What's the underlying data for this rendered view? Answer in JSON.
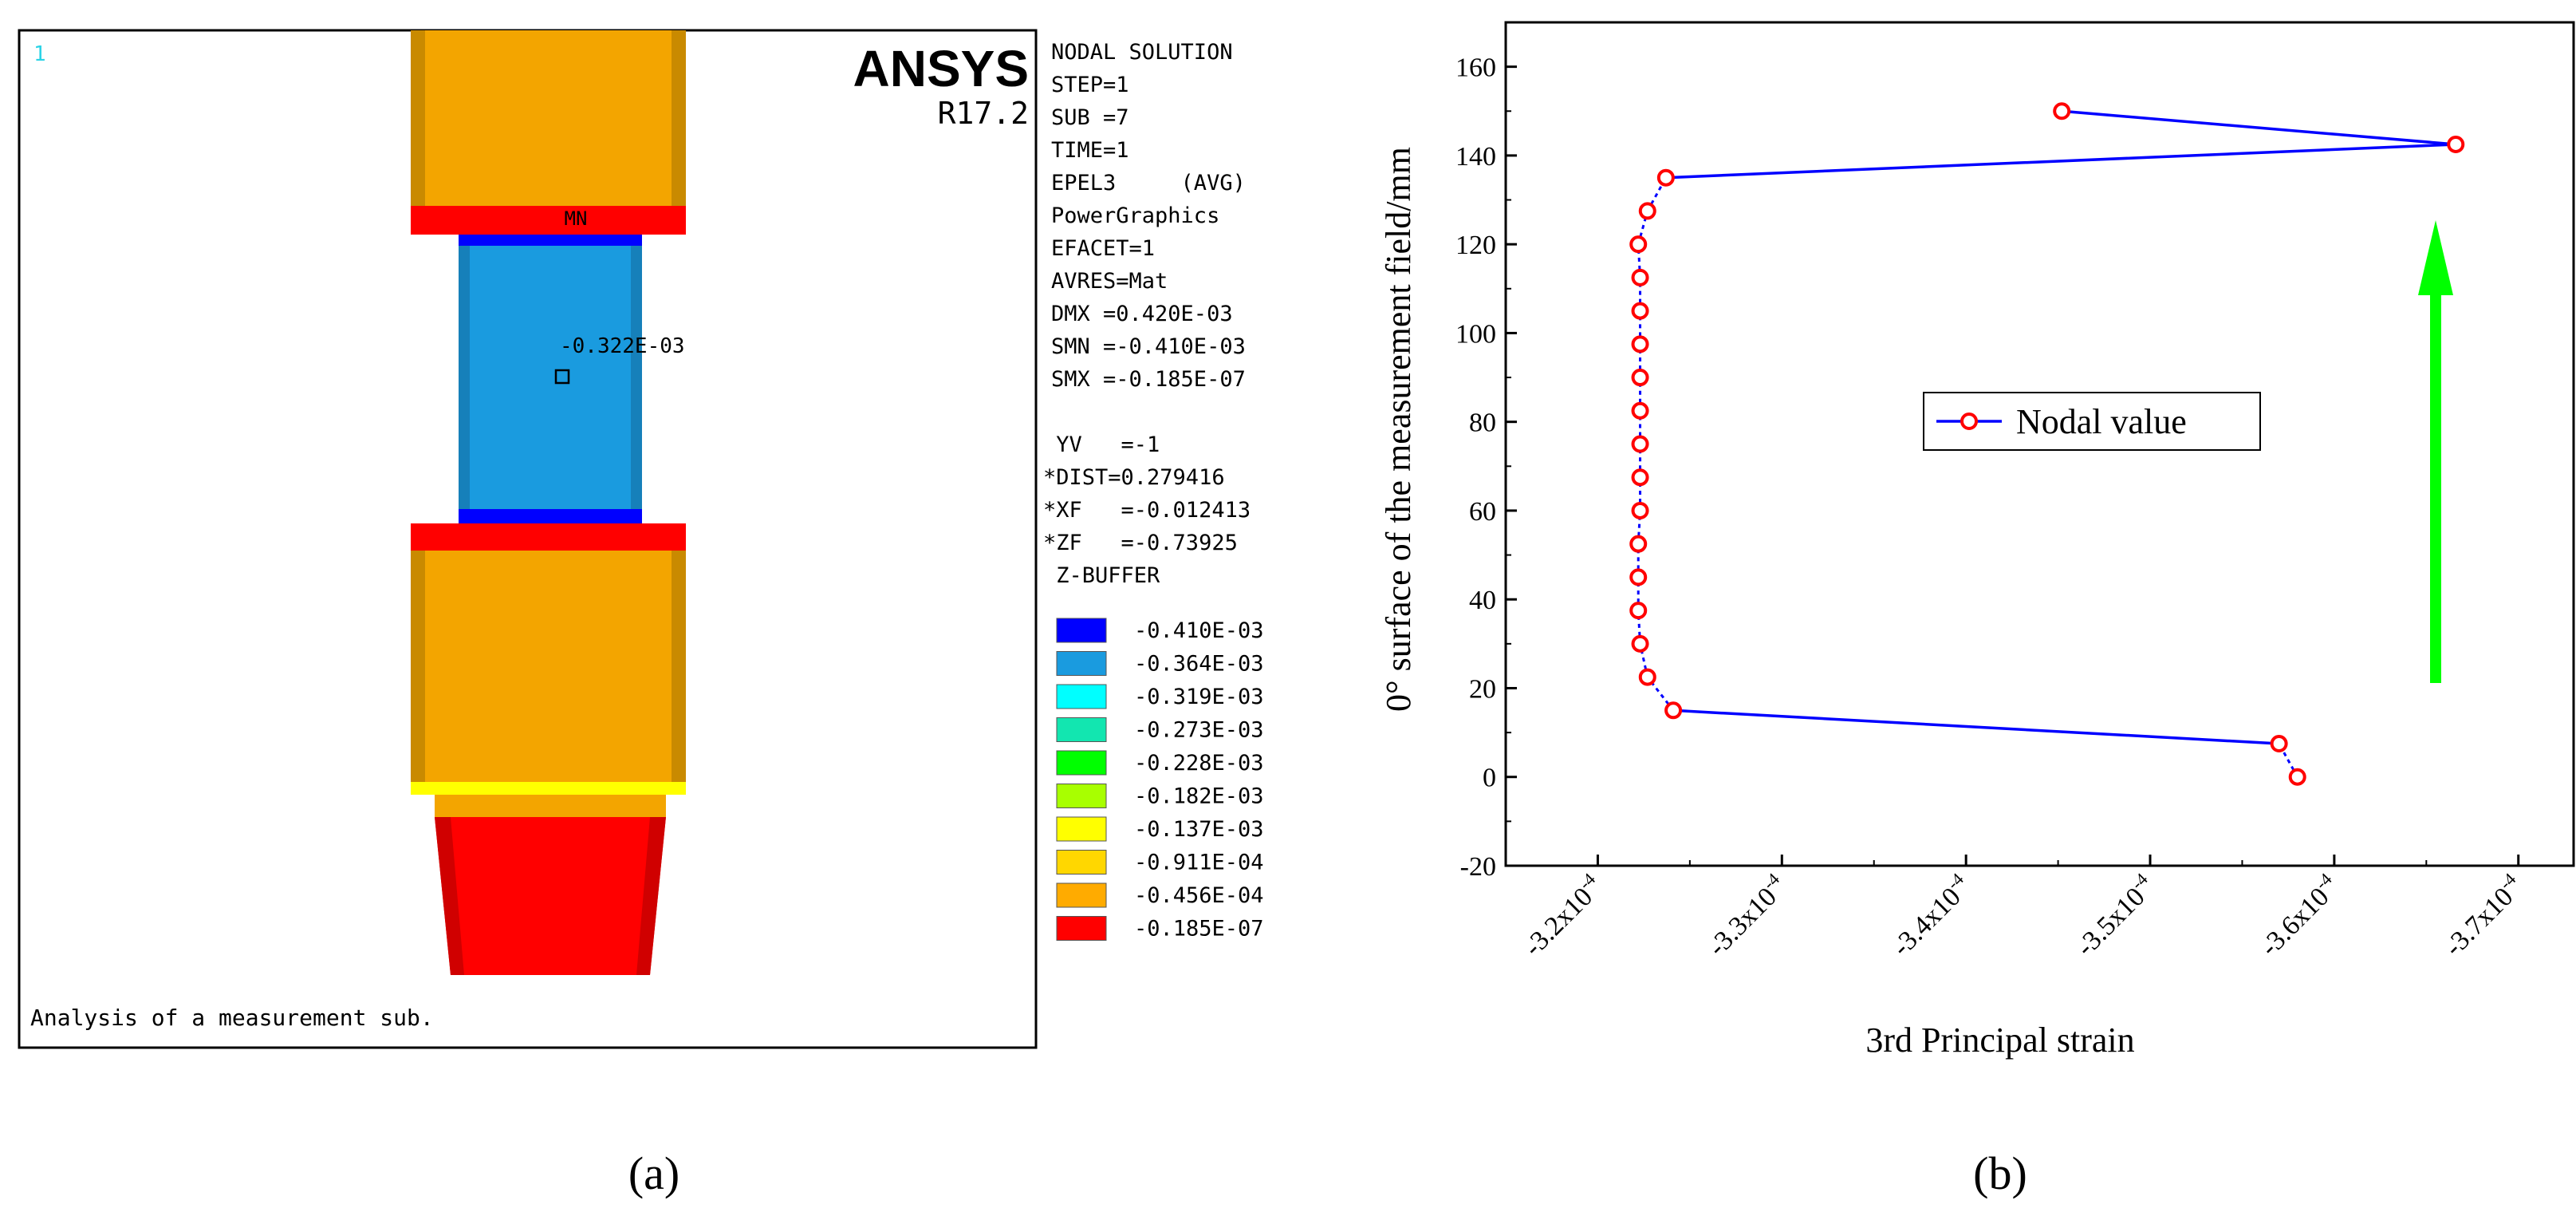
{
  "panel_a": {
    "label": "(a)",
    "window_number": "1",
    "brand": "ANSYS",
    "version": "R17.2",
    "footer_caption": "Analysis of a measurement sub.",
    "mn_label": "MN",
    "probe_value": "-0.322E-03",
    "solution_info": [
      "NODAL SOLUTION",
      "STEP=1",
      "SUB =7",
      "TIME=1",
      "EPEL3     (AVG)",
      "PowerGraphics",
      "EFACET=1",
      "AVRES=Mat",
      "DMX =0.420E-03",
      "SMN =-0.410E-03",
      "SMX =-0.185E-07"
    ],
    "view_info": [
      " YV   =-1",
      "*DIST=0.279416",
      "*XF   =-0.012413",
      "*ZF   =-0.73925",
      " Z-BUFFER"
    ],
    "legend": [
      {
        "color": "#0000ff",
        "value": "-0.410E-03"
      },
      {
        "color": "#1a9bdf",
        "value": "-0.364E-03"
      },
      {
        "color": "#00ffff",
        "value": "-0.319E-03"
      },
      {
        "color": "#12e6b0",
        "value": "-0.273E-03"
      },
      {
        "color": "#00ff00",
        "value": "-0.228E-03"
      },
      {
        "color": "#a8ff00",
        "value": "-0.182E-03"
      },
      {
        "color": "#ffff00",
        "value": "-0.137E-03"
      },
      {
        "color": "#ffd700",
        "value": "-0.911E-04"
      },
      {
        "color": "#ffab00",
        "value": "-0.456E-04"
      },
      {
        "color": "#ff0000",
        "value": "-0.185E-07"
      }
    ],
    "colors": {
      "orange": "#f3a500",
      "red": "#ff0000",
      "blue": "#0000ff",
      "cyan_blue": "#1a9bdf",
      "yellow": "#ffff00"
    }
  },
  "panel_b": {
    "label": "(b)",
    "chart_data": {
      "type": "line",
      "xlabel": "3rd Principal strain",
      "ylabel": "0° surface of the measurement field/mm",
      "xlim": [
        -0.000315,
        -0.000373
      ],
      "ylim": [
        -20,
        170
      ],
      "x_axis_reversed": true,
      "x_ticks": [
        -0.00032,
        -0.00033,
        -0.00034,
        -0.00035,
        -0.00036,
        -0.00037
      ],
      "x_tick_labels": [
        {
          "mantissa": "-3.2x10",
          "exp": "-4"
        },
        {
          "mantissa": "-3.3x10",
          "exp": "-4"
        },
        {
          "mantissa": "-3.4x10",
          "exp": "-4"
        },
        {
          "mantissa": "-3.5x10",
          "exp": "-4"
        },
        {
          "mantissa": "-3.6x10",
          "exp": "-4"
        },
        {
          "mantissa": "-3.7x10",
          "exp": "-4"
        }
      ],
      "y_ticks": [
        -20,
        0,
        20,
        40,
        60,
        80,
        100,
        120,
        140,
        160
      ],
      "legend_position": "center",
      "series": [
        {
          "name": "Nodal value",
          "line_color": "#0000ff",
          "marker_color": "#ff0000",
          "x": [
            -0.000358,
            -0.000357,
            -0.0003241,
            -0.0003227,
            -0.0003223,
            -0.0003222,
            -0.0003222,
            -0.0003222,
            -0.0003223,
            -0.0003223,
            -0.0003223,
            -0.0003223,
            -0.0003223,
            -0.0003223,
            -0.0003223,
            -0.0003223,
            -0.0003222,
            -0.0003227,
            -0.0003237,
            -0.0003666,
            -0.0003452
          ],
          "y": [
            0,
            7.5,
            15,
            22.5,
            30,
            37.5,
            45,
            52.5,
            60,
            67.5,
            75,
            82.5,
            90,
            97.5,
            105,
            112.5,
            120,
            127.5,
            135,
            142.5,
            150
          ]
        }
      ],
      "annotation": {
        "type": "arrow",
        "direction": "up",
        "color": "#00ff00"
      }
    }
  }
}
